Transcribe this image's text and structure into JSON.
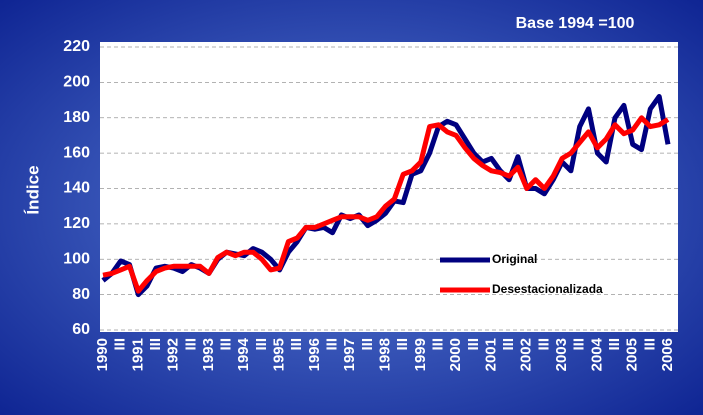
{
  "chart_data": {
    "type": "line",
    "annotation": "Base 1994 =100",
    "y_label": "Índice",
    "categories": [
      "1990",
      null,
      "III",
      null,
      "1991",
      null,
      "III",
      null,
      "1992",
      null,
      "III",
      null,
      "1993",
      null,
      "III",
      null,
      "1994",
      null,
      "III",
      null,
      "1995",
      null,
      "III",
      null,
      "1996",
      null,
      "III",
      null,
      "1997",
      null,
      "III",
      null,
      "1998",
      null,
      "III",
      null,
      "1999",
      null,
      "III",
      null,
      "2000",
      null,
      "III",
      null,
      "2001",
      null,
      "III",
      null,
      "2002",
      null,
      "III",
      null,
      "2003",
      null,
      "III",
      null,
      "2004",
      null,
      "III",
      null,
      "2005",
      null,
      "III",
      null,
      "2006"
    ],
    "series": [
      {
        "name": "Original",
        "color": "#000080",
        "values": [
          88,
          92,
          99,
          97,
          80,
          85,
          95,
          96,
          95,
          93,
          97,
          95,
          92,
          100,
          104,
          103,
          102,
          106,
          104,
          100,
          94,
          104,
          110,
          118,
          117,
          118,
          115,
          125,
          123,
          125,
          119,
          122,
          126,
          133,
          132,
          148,
          150,
          160,
          175,
          178,
          176,
          168,
          160,
          155,
          157,
          150,
          145,
          158,
          140,
          140,
          137,
          145,
          155,
          150,
          175,
          185,
          160,
          155,
          180,
          187,
          165,
          162,
          185,
          192,
          165
        ]
      },
      {
        "name": "Desestacionalizada",
        "color": "#ff0000",
        "values": [
          91,
          92,
          94,
          96,
          82,
          88,
          93,
          95,
          96,
          96,
          96,
          96,
          92,
          101,
          104,
          102,
          104,
          104,
          100,
          94,
          95,
          110,
          112,
          118,
          118,
          120,
          122,
          124,
          124,
          124,
          122,
          124,
          130,
          134,
          148,
          150,
          155,
          175,
          176,
          172,
          170,
          163,
          157,
          153,
          150,
          149,
          147,
          152,
          140,
          145,
          140,
          147,
          157,
          160,
          166,
          172,
          163,
          168,
          176,
          171,
          173,
          180,
          175,
          176,
          179
        ]
      }
    ],
    "ylim": [
      60,
      220
    ],
    "yticks": [
      60,
      80,
      100,
      120,
      140,
      160,
      180,
      200,
      220
    ],
    "grid": true
  }
}
